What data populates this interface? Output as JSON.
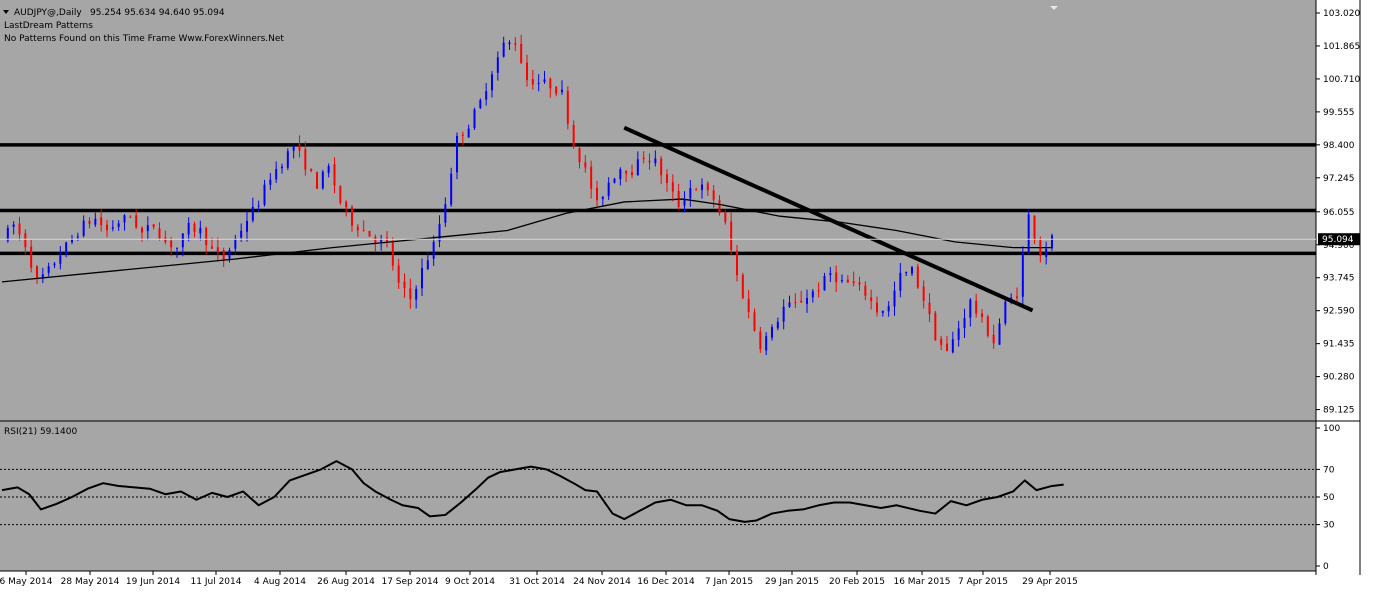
{
  "header": {
    "symbol_line": "AUDJPY@,Daily",
    "ohlc": "95.254 95.634 94.640 95.094",
    "indicator_name": "LastDream Patterns",
    "indicator_msg": "No Patterns Found on this Time Frame Www.ForexWinners.Net"
  },
  "colors": {
    "background": "#a6a6a6",
    "bull": "#0000ff",
    "bear": "#ff0000",
    "line": "#000000",
    "price_tag_bg": "#000000",
    "price_tag_fg": "#ffffff"
  },
  "chart_data": [
    {
      "type": "candlestick",
      "title": "AUDJPY@,Daily",
      "ylim": [
        88.9,
        103.3
      ],
      "y_ticks": [
        "103.020",
        "101.865",
        "100.710",
        "99.555",
        "98.400",
        "97.245",
        "96.055",
        "94.900",
        "93.745",
        "92.590",
        "91.435",
        "90.280",
        "89.125"
      ],
      "current_price": "95.094",
      "x_labels": [
        "6 May 2014",
        "28 May 2014",
        "19 Jun 2014",
        "11 Jul 2014",
        "4 Aug 2014",
        "26 Aug 2014",
        "17 Sep 2014",
        "9 Oct 2014",
        "31 Oct 2014",
        "24 Nov 2014",
        "16 Dec 2014",
        "7 Jan 2015",
        "29 Jan 2015",
        "20 Feb 2015",
        "16 Mar 2015",
        "7 Apr 2015",
        "29 Apr 2015"
      ],
      "close_path": [
        [
          0,
          95.1
        ],
        [
          6,
          95.6
        ],
        [
          12,
          94.9
        ],
        [
          18,
          93.6
        ],
        [
          24,
          94.0
        ],
        [
          30,
          94.6
        ],
        [
          36,
          95.1
        ],
        [
          42,
          95.6
        ],
        [
          48,
          95.8
        ],
        [
          54,
          95.4
        ],
        [
          60,
          95.7
        ],
        [
          66,
          95.9
        ],
        [
          72,
          95.3
        ],
        [
          78,
          95.6
        ],
        [
          84,
          95.0
        ],
        [
          90,
          94.8
        ],
        [
          96,
          95.5
        ],
        [
          102,
          95.4
        ],
        [
          108,
          94.7
        ],
        [
          114,
          94.4
        ],
        [
          120,
          95.1
        ],
        [
          126,
          95.8
        ],
        [
          132,
          96.4
        ],
        [
          138,
          97.3
        ],
        [
          144,
          97.8
        ],
        [
          150,
          98.4
        ],
        [
          156,
          97.7
        ],
        [
          162,
          97.0
        ],
        [
          168,
          97.6
        ],
        [
          174,
          96.4
        ],
        [
          180,
          95.7
        ],
        [
          186,
          95.4
        ],
        [
          192,
          95.1
        ],
        [
          198,
          94.9
        ],
        [
          204,
          93.5
        ],
        [
          210,
          93.0
        ],
        [
          216,
          94.0
        ],
        [
          222,
          94.9
        ],
        [
          228,
          96.4
        ],
        [
          234,
          98.6
        ],
        [
          240,
          99.1
        ],
        [
          246,
          99.9
        ],
        [
          252,
          101.0
        ],
        [
          258,
          101.9
        ],
        [
          264,
          102.0
        ],
        [
          270,
          100.7
        ],
        [
          276,
          100.6
        ],
        [
          282,
          100.5
        ],
        [
          288,
          100.2
        ],
        [
          294,
          98.4
        ],
        [
          300,
          97.5
        ],
        [
          306,
          96.3
        ],
        [
          312,
          97.1
        ],
        [
          318,
          97.6
        ],
        [
          324,
          97.5
        ],
        [
          330,
          98.0
        ],
        [
          336,
          97.8
        ],
        [
          342,
          97.0
        ],
        [
          348,
          96.3
        ],
        [
          354,
          96.9
        ],
        [
          360,
          96.9
        ],
        [
          366,
          96.5
        ],
        [
          372,
          95.6
        ],
        [
          378,
          93.8
        ],
        [
          384,
          92.5
        ],
        [
          390,
          91.4
        ],
        [
          396,
          91.9
        ],
        [
          402,
          92.7
        ],
        [
          408,
          92.8
        ],
        [
          414,
          93.1
        ],
        [
          420,
          93.4
        ],
        [
          426,
          93.9
        ],
        [
          432,
          93.6
        ],
        [
          438,
          93.5
        ],
        [
          444,
          93.2
        ],
        [
          450,
          92.6
        ],
        [
          456,
          92.7
        ],
        [
          462,
          93.8
        ],
        [
          468,
          94.0
        ],
        [
          474,
          93.0
        ],
        [
          480,
          91.7
        ],
        [
          486,
          91.1
        ],
        [
          492,
          92.0
        ],
        [
          498,
          92.9
        ],
        [
          504,
          92.2
        ],
        [
          510,
          91.5
        ],
        [
          516,
          92.8
        ],
        [
          522,
          93.2
        ],
        [
          528,
          95.9
        ],
        [
          534,
          94.6
        ],
        [
          540,
          95.1
        ]
      ],
      "moving_average": [
        [
          0,
          93.6
        ],
        [
          60,
          94.0
        ],
        [
          120,
          94.4
        ],
        [
          170,
          94.8
        ],
        [
          200,
          95.0
        ],
        [
          230,
          95.2
        ],
        [
          260,
          95.4
        ],
        [
          290,
          96.0
        ],
        [
          320,
          96.4
        ],
        [
          350,
          96.5
        ],
        [
          370,
          96.3
        ],
        [
          400,
          95.9
        ],
        [
          430,
          95.7
        ],
        [
          460,
          95.4
        ],
        [
          490,
          95.0
        ],
        [
          520,
          94.8
        ],
        [
          540,
          94.8
        ]
      ],
      "horizontal_levels": [
        98.4,
        96.1,
        94.6
      ],
      "trendline": [
        [
          320,
          99.0
        ],
        [
          530,
          92.6
        ]
      ]
    },
    {
      "type": "line",
      "title": "RSI(21) 59.1400",
      "name": "RSI(21)",
      "current_value": "59.1400",
      "ylim": [
        0,
        100
      ],
      "y_ticks": [
        "100",
        "70",
        "50",
        "30",
        "0"
      ],
      "levels": [
        70,
        50,
        30
      ],
      "values": [
        [
          0,
          55
        ],
        [
          8,
          57
        ],
        [
          14,
          52
        ],
        [
          20,
          41
        ],
        [
          28,
          45
        ],
        [
          36,
          50
        ],
        [
          44,
          56
        ],
        [
          52,
          60
        ],
        [
          60,
          58
        ],
        [
          68,
          57
        ],
        [
          76,
          56
        ],
        [
          84,
          52
        ],
        [
          92,
          54
        ],
        [
          100,
          48
        ],
        [
          108,
          53
        ],
        [
          116,
          50
        ],
        [
          124,
          54
        ],
        [
          132,
          44
        ],
        [
          140,
          50
        ],
        [
          148,
          62
        ],
        [
          156,
          66
        ],
        [
          164,
          70
        ],
        [
          172,
          76
        ],
        [
          180,
          70
        ],
        [
          186,
          60
        ],
        [
          192,
          54
        ],
        [
          200,
          48
        ],
        [
          206,
          44
        ],
        [
          214,
          42
        ],
        [
          220,
          36
        ],
        [
          228,
          37
        ],
        [
          236,
          46
        ],
        [
          244,
          56
        ],
        [
          250,
          64
        ],
        [
          256,
          68
        ],
        [
          264,
          70
        ],
        [
          272,
          72
        ],
        [
          280,
          70
        ],
        [
          286,
          66
        ],
        [
          294,
          60
        ],
        [
          300,
          55
        ],
        [
          306,
          54
        ],
        [
          314,
          38
        ],
        [
          320,
          34
        ],
        [
          328,
          40
        ],
        [
          336,
          46
        ],
        [
          344,
          48
        ],
        [
          352,
          44
        ],
        [
          360,
          44
        ],
        [
          368,
          40
        ],
        [
          374,
          34
        ],
        [
          382,
          32
        ],
        [
          388,
          33
        ],
        [
          396,
          38
        ],
        [
          404,
          40
        ],
        [
          412,
          41
        ],
        [
          420,
          44
        ],
        [
          428,
          46
        ],
        [
          436,
          46
        ],
        [
          444,
          44
        ],
        [
          452,
          42
        ],
        [
          460,
          44
        ],
        [
          466,
          42
        ],
        [
          472,
          40
        ],
        [
          480,
          38
        ],
        [
          488,
          47
        ],
        [
          496,
          44
        ],
        [
          504,
          48
        ],
        [
          512,
          50
        ],
        [
          520,
          54
        ],
        [
          526,
          62
        ],
        [
          532,
          55
        ],
        [
          540,
          58
        ],
        [
          546,
          59
        ]
      ]
    }
  ]
}
